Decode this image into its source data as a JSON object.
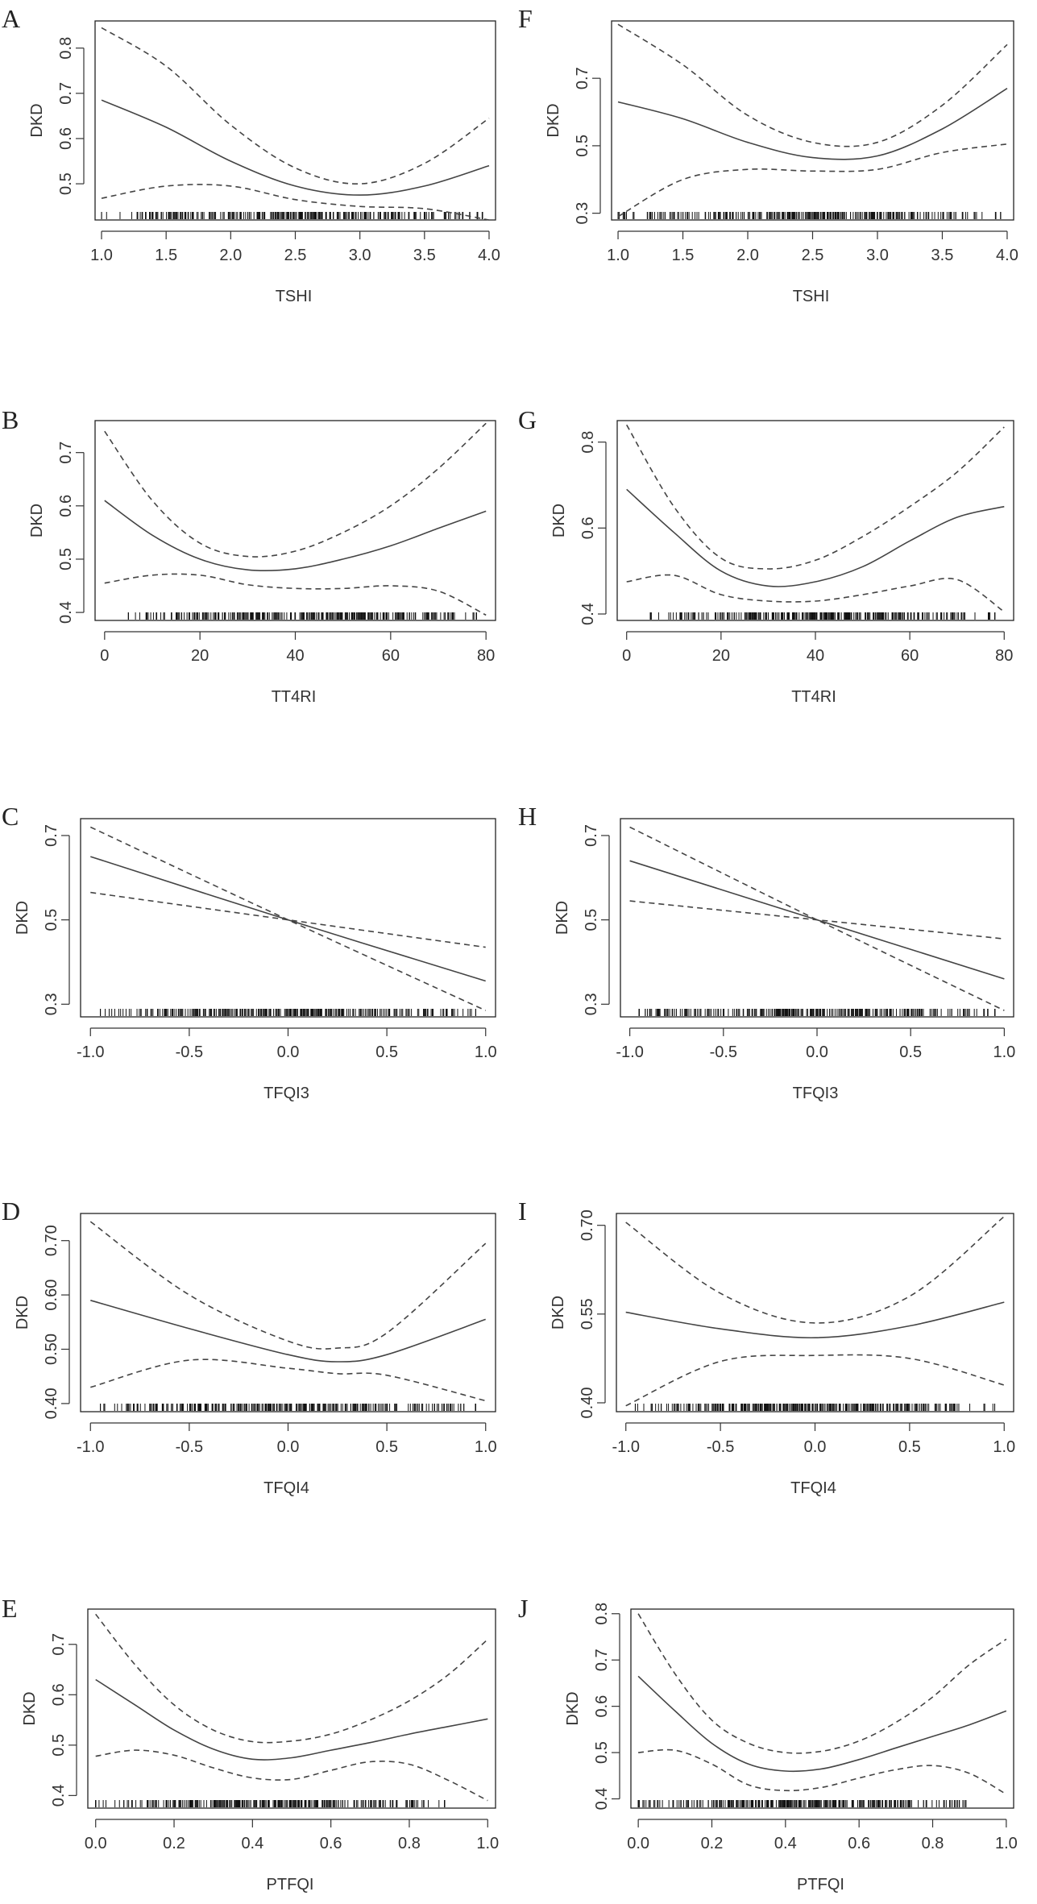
{
  "chart_data": [
    {
      "id": "A",
      "type": "line",
      "ylabel": "DKD",
      "xlabel": "TSHI",
      "xlim": [
        0.95,
        4.05
      ],
      "ylim": [
        0.42,
        0.86
      ],
      "xticks": [
        1.0,
        1.5,
        2.0,
        2.5,
        3.0,
        3.5,
        4.0
      ],
      "xtick_labels": [
        "1.0",
        "1.5",
        "2.0",
        "2.5",
        "3.0",
        "3.5",
        "4.0"
      ],
      "yticks": [
        0.5,
        0.6,
        0.7,
        0.8
      ],
      "ytick_labels": [
        "0.5",
        "0.6",
        "0.7",
        "0.8"
      ],
      "rug": [
        1.0,
        3.95
      ],
      "series": [
        {
          "name": "estimate",
          "style": "solid",
          "x": [
            1.0,
            1.5,
            2.0,
            2.5,
            3.0,
            3.5,
            4.0
          ],
          "y": [
            0.685,
            0.625,
            0.55,
            0.495,
            0.475,
            0.495,
            0.54
          ]
        },
        {
          "name": "upper",
          "style": "dashed",
          "x": [
            1.0,
            1.5,
            2.0,
            2.5,
            3.0,
            3.5,
            4.0
          ],
          "y": [
            0.845,
            0.76,
            0.63,
            0.535,
            0.5,
            0.545,
            0.645
          ]
        },
        {
          "name": "lower",
          "style": "dashed",
          "x": [
            1.0,
            1.5,
            2.0,
            2.5,
            3.0,
            3.5,
            4.0
          ],
          "y": [
            0.468,
            0.495,
            0.495,
            0.465,
            0.45,
            0.445,
            0.42
          ]
        }
      ]
    },
    {
      "id": "F",
      "type": "line",
      "ylabel": "DKD",
      "xlabel": "TSHI",
      "xlim": [
        0.95,
        4.05
      ],
      "ylim": [
        0.28,
        0.87
      ],
      "xticks": [
        1.0,
        1.5,
        2.0,
        2.5,
        3.0,
        3.5,
        4.0
      ],
      "xtick_labels": [
        "1.0",
        "1.5",
        "2.0",
        "2.5",
        "3.0",
        "3.5",
        "4.0"
      ],
      "yticks": [
        0.3,
        0.5,
        0.7
      ],
      "ytick_labels": [
        "0.3",
        "0.5",
        "0.7"
      ],
      "rug": [
        1.0,
        3.95
      ],
      "series": [
        {
          "name": "estimate",
          "style": "solid",
          "x": [
            1.0,
            1.5,
            2.0,
            2.5,
            3.0,
            3.5,
            4.0
          ],
          "y": [
            0.63,
            0.58,
            0.51,
            0.465,
            0.47,
            0.55,
            0.67
          ]
        },
        {
          "name": "upper",
          "style": "dashed",
          "x": [
            1.0,
            1.5,
            2.0,
            2.5,
            3.0,
            3.5,
            4.0
          ],
          "y": [
            0.86,
            0.74,
            0.59,
            0.51,
            0.51,
            0.62,
            0.8
          ]
        },
        {
          "name": "lower",
          "style": "dashed",
          "x": [
            1.0,
            1.5,
            2.0,
            2.5,
            3.0,
            3.5,
            4.0
          ],
          "y": [
            0.29,
            0.4,
            0.43,
            0.425,
            0.43,
            0.48,
            0.505
          ]
        }
      ]
    },
    {
      "id": "B",
      "type": "line",
      "ylabel": "DKD",
      "xlabel": "TT4RI",
      "xlim": [
        -2,
        82
      ],
      "ylim": [
        0.385,
        0.76
      ],
      "xticks": [
        0,
        20,
        40,
        60,
        80
      ],
      "xtick_labels": [
        "0",
        "20",
        "40",
        "60",
        "80"
      ],
      "yticks": [
        0.4,
        0.5,
        0.6,
        0.7
      ],
      "ytick_labels": [
        "0.4",
        "0.5",
        "0.6",
        "0.7"
      ],
      "rug": [
        5,
        78
      ],
      "series": [
        {
          "name": "estimate",
          "style": "solid",
          "x": [
            0,
            10,
            20,
            30,
            40,
            50,
            60,
            70,
            80
          ],
          "y": [
            0.61,
            0.545,
            0.5,
            0.48,
            0.482,
            0.5,
            0.525,
            0.558,
            0.59
          ]
        },
        {
          "name": "upper",
          "style": "dashed",
          "x": [
            0,
            10,
            20,
            30,
            40,
            50,
            60,
            70,
            80
          ],
          "y": [
            0.74,
            0.61,
            0.53,
            0.505,
            0.515,
            0.55,
            0.6,
            0.67,
            0.755
          ]
        },
        {
          "name": "lower",
          "style": "dashed",
          "x": [
            0,
            10,
            20,
            30,
            40,
            50,
            60,
            70,
            80
          ],
          "y": [
            0.455,
            0.47,
            0.47,
            0.452,
            0.445,
            0.445,
            0.45,
            0.44,
            0.395
          ]
        }
      ]
    },
    {
      "id": "G",
      "type": "line",
      "ylabel": "DKD",
      "xlabel": "TT4RI",
      "xlim": [
        -2,
        82
      ],
      "ylim": [
        0.385,
        0.85
      ],
      "xticks": [
        0,
        20,
        40,
        60,
        80
      ],
      "xtick_labels": [
        "0",
        "20",
        "40",
        "60",
        "80"
      ],
      "yticks": [
        0.4,
        0.6,
        0.8
      ],
      "ytick_labels": [
        "0.4",
        "0.6",
        "0.8"
      ],
      "rug": [
        5,
        78
      ],
      "series": [
        {
          "name": "estimate",
          "style": "solid",
          "x": [
            0,
            10,
            20,
            30,
            40,
            50,
            60,
            70,
            80
          ],
          "y": [
            0.69,
            0.59,
            0.5,
            0.465,
            0.475,
            0.51,
            0.57,
            0.625,
            0.65
          ]
        },
        {
          "name": "upper",
          "style": "dashed",
          "x": [
            0,
            10,
            20,
            30,
            40,
            50,
            60,
            70,
            80
          ],
          "y": [
            0.84,
            0.65,
            0.53,
            0.505,
            0.525,
            0.58,
            0.65,
            0.73,
            0.835
          ]
        },
        {
          "name": "lower",
          "style": "dashed",
          "x": [
            0,
            10,
            20,
            30,
            40,
            50,
            60,
            70,
            80
          ],
          "y": [
            0.475,
            0.49,
            0.445,
            0.43,
            0.43,
            0.445,
            0.465,
            0.48,
            0.405
          ]
        }
      ]
    },
    {
      "id": "C",
      "type": "line",
      "ylabel": "DKD",
      "xlabel": "TFQI3",
      "xlim": [
        -1.05,
        1.05
      ],
      "ylim": [
        0.27,
        0.74
      ],
      "xticks": [
        -1.0,
        -0.5,
        0.0,
        0.5,
        1.0
      ],
      "xtick_labels": [
        "-1.0",
        "-0.5",
        "0.0",
        "0.5",
        "1.0"
      ],
      "yticks": [
        0.3,
        0.5,
        0.7
      ],
      "ytick_labels": [
        "0.3",
        "0.5",
        "0.7"
      ],
      "rug": [
        -0.95,
        0.95
      ],
      "series": [
        {
          "name": "estimate",
          "style": "solid",
          "x": [
            -1.0,
            0.0,
            1.0
          ],
          "y": [
            0.65,
            0.5,
            0.355
          ]
        },
        {
          "name": "upper",
          "style": "dashed",
          "x": [
            -1.0,
            0.0,
            1.0
          ],
          "y": [
            0.72,
            0.5,
            0.285
          ]
        },
        {
          "name": "lower",
          "style": "dashed",
          "x": [
            -1.0,
            0.0,
            1.0
          ],
          "y": [
            0.565,
            0.5,
            0.435
          ]
        }
      ]
    },
    {
      "id": "H",
      "type": "line",
      "ylabel": "DKD",
      "xlabel": "TFQI3",
      "xlim": [
        -1.05,
        1.05
      ],
      "ylim": [
        0.27,
        0.74
      ],
      "xticks": [
        -1.0,
        -0.5,
        0.0,
        0.5,
        1.0
      ],
      "xtick_labels": [
        "-1.0",
        "-0.5",
        "0.0",
        "0.5",
        "1.0"
      ],
      "yticks": [
        0.3,
        0.5,
        0.7
      ],
      "ytick_labels": [
        "0.3",
        "0.5",
        "0.7"
      ],
      "rug": [
        -0.95,
        0.95
      ],
      "series": [
        {
          "name": "estimate",
          "style": "solid",
          "x": [
            -1.0,
            0.0,
            1.0
          ],
          "y": [
            0.64,
            0.5,
            0.36
          ]
        },
        {
          "name": "upper",
          "style": "dashed",
          "x": [
            -1.0,
            0.0,
            1.0
          ],
          "y": [
            0.72,
            0.5,
            0.285
          ]
        },
        {
          "name": "lower",
          "style": "dashed",
          "x": [
            -1.0,
            0.0,
            1.0
          ],
          "y": [
            0.545,
            0.5,
            0.455
          ]
        }
      ]
    },
    {
      "id": "D",
      "type": "line",
      "ylabel": "DKD",
      "xlabel": "TFQI4",
      "xlim": [
        -1.05,
        1.05
      ],
      "ylim": [
        0.385,
        0.75
      ],
      "xticks": [
        -1.0,
        -0.5,
        0.0,
        0.5,
        1.0
      ],
      "xtick_labels": [
        "-1.0",
        "-0.5",
        "0.0",
        "0.5",
        "1.0"
      ],
      "yticks": [
        0.4,
        0.5,
        0.6,
        0.7
      ],
      "ytick_labels": [
        "0.40",
        "0.50",
        "0.60",
        "0.70"
      ],
      "rug": [
        -0.95,
        0.95
      ],
      "series": [
        {
          "name": "estimate",
          "style": "solid",
          "x": [
            -1.0,
            -0.5,
            0.0,
            0.25,
            0.5,
            1.0
          ],
          "y": [
            0.59,
            0.538,
            0.49,
            0.477,
            0.49,
            0.555
          ]
        },
        {
          "name": "upper",
          "style": "dashed",
          "x": [
            -1.0,
            -0.5,
            0.0,
            0.25,
            0.5,
            1.0
          ],
          "y": [
            0.735,
            0.6,
            0.515,
            0.502,
            0.53,
            0.695
          ]
        },
        {
          "name": "lower",
          "style": "dashed",
          "x": [
            -1.0,
            -0.5,
            0.0,
            0.25,
            0.5,
            1.0
          ],
          "y": [
            0.43,
            0.48,
            0.465,
            0.455,
            0.452,
            0.405
          ]
        }
      ]
    },
    {
      "id": "I",
      "type": "line",
      "ylabel": "DKD",
      "xlabel": "TFQI4",
      "xlim": [
        -1.05,
        1.05
      ],
      "ylim": [
        0.385,
        0.72
      ],
      "xticks": [
        -1.0,
        -0.5,
        0.0,
        0.5,
        1.0
      ],
      "xtick_labels": [
        "-1.0",
        "-0.5",
        "0.0",
        "0.5",
        "1.0"
      ],
      "yticks": [
        0.4,
        0.55,
        0.7
      ],
      "ytick_labels": [
        "0.40",
        "0.55",
        "0.70"
      ],
      "rug": [
        -0.95,
        0.95
      ],
      "series": [
        {
          "name": "estimate",
          "style": "solid",
          "x": [
            -1.0,
            -0.5,
            0.0,
            0.5,
            1.0
          ],
          "y": [
            0.553,
            0.525,
            0.51,
            0.53,
            0.57
          ]
        },
        {
          "name": "upper",
          "style": "dashed",
          "x": [
            -1.0,
            -0.5,
            0.0,
            0.5,
            1.0
          ],
          "y": [
            0.705,
            0.585,
            0.535,
            0.58,
            0.715
          ]
        },
        {
          "name": "lower",
          "style": "dashed",
          "x": [
            -1.0,
            -0.5,
            0.0,
            0.5,
            1.0
          ],
          "y": [
            0.395,
            0.47,
            0.48,
            0.475,
            0.43
          ]
        }
      ]
    },
    {
      "id": "E",
      "type": "line",
      "ylabel": "DKD",
      "xlabel": "PTFQI",
      "xlim": [
        -0.02,
        1.02
      ],
      "ylim": [
        0.375,
        0.77
      ],
      "xticks": [
        0.0,
        0.2,
        0.4,
        0.6,
        0.8,
        1.0
      ],
      "xtick_labels": [
        "0.0",
        "0.2",
        "0.4",
        "0.6",
        "0.8",
        "1.0"
      ],
      "yticks": [
        0.4,
        0.5,
        0.6,
        0.7
      ],
      "ytick_labels": [
        "0.4",
        "0.5",
        "0.6",
        "0.7"
      ],
      "rug": [
        0.0,
        0.89
      ],
      "series": [
        {
          "name": "estimate",
          "style": "solid",
          "x": [
            0.0,
            0.1,
            0.2,
            0.3,
            0.4,
            0.5,
            0.6,
            0.7,
            0.8,
            0.9,
            1.0
          ],
          "y": [
            0.63,
            0.58,
            0.53,
            0.492,
            0.472,
            0.475,
            0.49,
            0.505,
            0.522,
            0.537,
            0.552
          ]
        },
        {
          "name": "upper",
          "style": "dashed",
          "x": [
            0.0,
            0.1,
            0.2,
            0.3,
            0.4,
            0.5,
            0.6,
            0.7,
            0.8,
            0.9,
            1.0
          ],
          "y": [
            0.76,
            0.66,
            0.58,
            0.53,
            0.507,
            0.508,
            0.522,
            0.55,
            0.588,
            0.64,
            0.71
          ]
        },
        {
          "name": "lower",
          "style": "dashed",
          "x": [
            0.0,
            0.1,
            0.2,
            0.3,
            0.4,
            0.5,
            0.6,
            0.7,
            0.8,
            0.9,
            1.0
          ],
          "y": [
            0.478,
            0.49,
            0.48,
            0.455,
            0.435,
            0.432,
            0.45,
            0.467,
            0.462,
            0.43,
            0.39
          ]
        }
      ]
    },
    {
      "id": "J",
      "type": "line",
      "ylabel": "DKD",
      "xlabel": "PTFQI",
      "xlim": [
        -0.02,
        1.02
      ],
      "ylim": [
        0.38,
        0.81
      ],
      "xticks": [
        0.0,
        0.2,
        0.4,
        0.6,
        0.8,
        1.0
      ],
      "xtick_labels": [
        "0.0",
        "0.2",
        "0.4",
        "0.6",
        "0.8",
        "1.0"
      ],
      "yticks": [
        0.4,
        0.5,
        0.6,
        0.7,
        0.8
      ],
      "ytick_labels": [
        "0.4",
        "0.5",
        "0.6",
        "0.7",
        "0.8"
      ],
      "rug": [
        0.0,
        0.89
      ],
      "series": [
        {
          "name": "estimate",
          "style": "solid",
          "x": [
            0.0,
            0.1,
            0.2,
            0.3,
            0.4,
            0.5,
            0.6,
            0.7,
            0.8,
            0.9,
            1.0
          ],
          "y": [
            0.665,
            0.59,
            0.52,
            0.475,
            0.46,
            0.465,
            0.485,
            0.51,
            0.535,
            0.56,
            0.59
          ]
        },
        {
          "name": "upper",
          "style": "dashed",
          "x": [
            0.0,
            0.1,
            0.2,
            0.3,
            0.4,
            0.5,
            0.6,
            0.7,
            0.8,
            0.9,
            1.0
          ],
          "y": [
            0.8,
            0.67,
            0.57,
            0.52,
            0.5,
            0.503,
            0.525,
            0.565,
            0.62,
            0.69,
            0.745
          ]
        },
        {
          "name": "lower",
          "style": "dashed",
          "x": [
            0.0,
            0.1,
            0.2,
            0.3,
            0.4,
            0.5,
            0.6,
            0.7,
            0.8,
            0.9,
            1.0
          ],
          "y": [
            0.5,
            0.505,
            0.475,
            0.43,
            0.418,
            0.425,
            0.445,
            0.463,
            0.472,
            0.455,
            0.41
          ]
        }
      ]
    }
  ]
}
